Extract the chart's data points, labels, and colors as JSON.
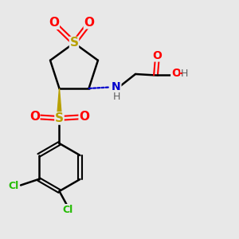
{
  "bg_color": "#e8e8e8",
  "colors": {
    "S": "#b8a000",
    "O": "#ff0000",
    "N": "#0000cc",
    "H": "#606060",
    "Cl": "#22bb00",
    "C": "#000000",
    "bond": "#000000"
  }
}
